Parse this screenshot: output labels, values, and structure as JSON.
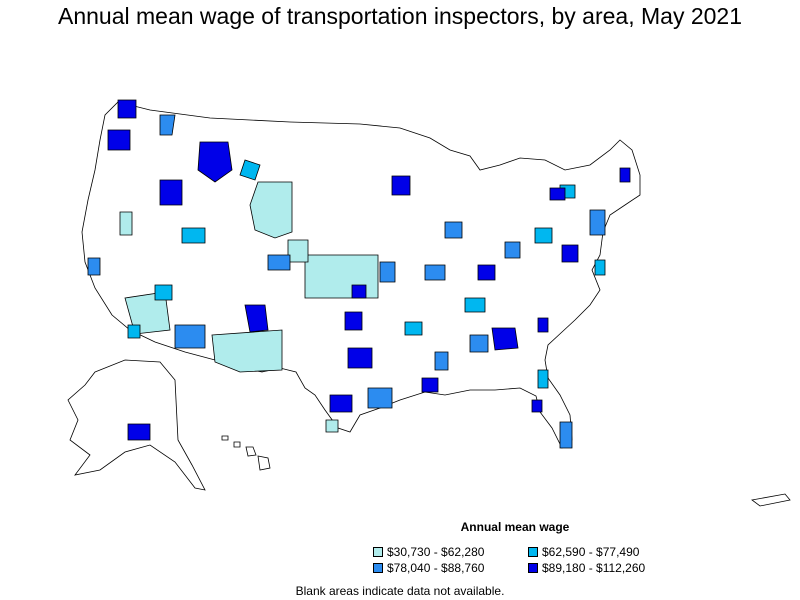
{
  "title": "Annual mean wage of transportation inspectors, by area, May 2021",
  "legend": {
    "title": "Annual mean wage",
    "items": [
      {
        "label": "$30,730 - $62,280",
        "color": "#b0ecec"
      },
      {
        "label": "$62,590 - $77,490",
        "color": "#00b7f0"
      },
      {
        "label": "$78,040 - $88,760",
        "color": "#2c8cf0"
      },
      {
        "label": "$89,180 - $112,260",
        "color": "#0000e8"
      }
    ]
  },
  "footnote": "Blank areas indicate data not available.",
  "colors": {
    "border": "#000000",
    "blank": "#ffffff"
  }
}
